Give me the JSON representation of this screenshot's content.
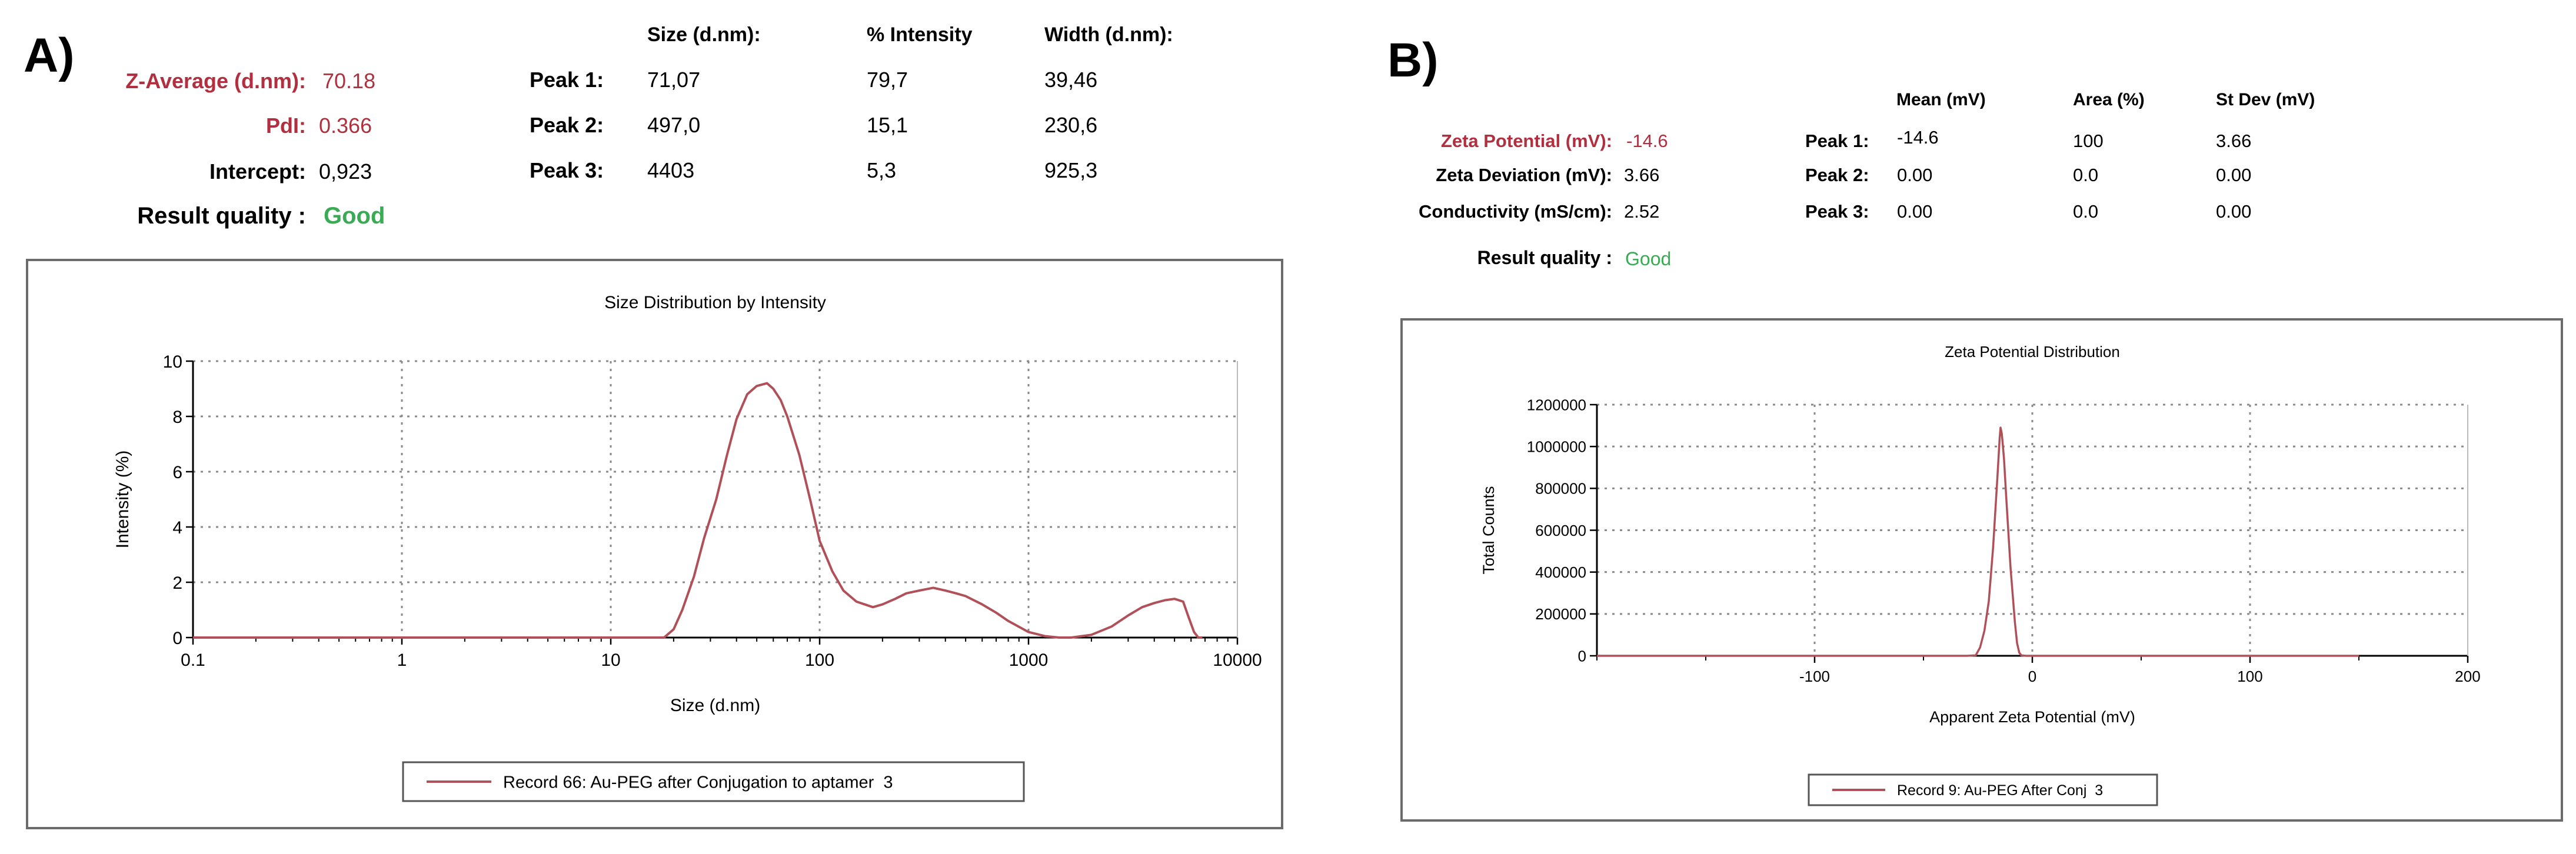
{
  "colors": {
    "curve": "#b05058",
    "label_red": "#b03040",
    "quality_green": "#3aaa55",
    "grid": "#8a8a8a",
    "frame": "#6b6b6b"
  },
  "panel_a": {
    "letter": "A)",
    "summary": {
      "z_average_label": "Z-Average (d.nm):",
      "z_average_value": "70.18",
      "pdi_label": "PdI:",
      "pdi_value": "0.366",
      "intercept_label": "Intercept:",
      "intercept_value": "0,923",
      "quality_label": "Result quality :",
      "quality_value": "Good"
    },
    "peaks_table": {
      "headers": [
        "Size (d.nm):",
        "% Intensity",
        "Width (d.nm):"
      ],
      "rows": [
        {
          "label": "Peak 1:",
          "size": "71,07",
          "intensity": "79,7",
          "width": "39,46"
        },
        {
          "label": "Peak 2:",
          "size": "497,0",
          "intensity": "15,1",
          "width": "230,6"
        },
        {
          "label": "Peak 3:",
          "size": "4403",
          "intensity": "5,3",
          "width": "925,3"
        }
      ]
    }
  },
  "panel_b": {
    "letter": "B)",
    "summary": {
      "zeta_potential_label": "Zeta Potential (mV):",
      "zeta_potential_value": "-14.6",
      "zeta_deviation_label": "Zeta Deviation (mV):",
      "zeta_deviation_value": "3.66",
      "conductivity_label": "Conductivity (mS/cm):",
      "conductivity_value": "2.52",
      "quality_label": "Result quality :",
      "quality_value": "Good"
    },
    "peaks_table": {
      "headers": [
        "Mean (mV)",
        "Area (%)",
        "St Dev (mV)"
      ],
      "rows": [
        {
          "label": "Peak 1:",
          "mean": "-14.6",
          "area": "100",
          "stdev": "3.66"
        },
        {
          "label": "Peak 2:",
          "mean": "0.00",
          "area": "0.0",
          "stdev": "0.00"
        },
        {
          "label": "Peak 3:",
          "mean": "0.00",
          "area": "0.0",
          "stdev": "0.00"
        }
      ]
    }
  },
  "chart_data": [
    {
      "type": "line",
      "title": "Size Distribution by Intensity",
      "xlabel": "Size (d.nm)",
      "ylabel": "Intensity (%)",
      "x_scale": "log",
      "xlim": [
        0.1,
        10000
      ],
      "ylim": [
        0,
        10
      ],
      "x_ticks": [
        "0.1",
        "1",
        "10",
        "100",
        "1000",
        "10000"
      ],
      "y_ticks": [
        "0",
        "2",
        "4",
        "6",
        "8",
        "10"
      ],
      "grid": true,
      "legend_position": "bottom-center",
      "series": [
        {
          "name": "Record 66: Au-PEG after Conjugation to aptamer  3",
          "x": [
            0.1,
            0.13,
            0.16,
            0.2,
            0.25,
            0.32,
            0.4,
            0.5,
            0.63,
            0.79,
            1,
            1.26,
            1.58,
            2,
            2.51,
            3.16,
            3.98,
            5.01,
            6.31,
            7.94,
            10,
            12.6,
            15.8,
            18,
            20,
            22,
            25,
            28,
            32,
            36,
            40,
            45,
            50,
            56,
            60,
            65,
            70,
            80,
            90,
            100,
            115,
            130,
            150,
            180,
            200,
            230,
            260,
            300,
            350,
            400,
            450,
            500,
            600,
            700,
            800,
            1000,
            1200,
            1400,
            1600,
            2000,
            2500,
            3000,
            3500,
            4000,
            4500,
            5000,
            5500,
            5800,
            6200,
            6500,
            6800
          ],
          "y": [
            0,
            0,
            0,
            0,
            0,
            0,
            0,
            0,
            0,
            0,
            0,
            0,
            0,
            0,
            0,
            0,
            0,
            0,
            0,
            0,
            0,
            0,
            0,
            0,
            0.3,
            1.0,
            2.2,
            3.6,
            5.0,
            6.6,
            7.9,
            8.8,
            9.1,
            9.2,
            9.0,
            8.6,
            8.0,
            6.6,
            5.0,
            3.5,
            2.4,
            1.7,
            1.3,
            1.1,
            1.2,
            1.4,
            1.6,
            1.7,
            1.8,
            1.7,
            1.6,
            1.5,
            1.2,
            0.9,
            0.6,
            0.2,
            0.05,
            0,
            0,
            0.1,
            0.4,
            0.8,
            1.1,
            1.25,
            1.35,
            1.4,
            1.3,
            0.8,
            0.2,
            0,
            0
          ]
        }
      ]
    },
    {
      "type": "line",
      "title": "Zeta Potential Distribution",
      "xlabel": "Apparent Zeta Potential (mV)",
      "ylabel": "Total Counts",
      "xlim": [
        -200,
        200
      ],
      "ylim": [
        0,
        1200000
      ],
      "x_ticks": [
        "-100",
        "0",
        "100",
        "200"
      ],
      "y_ticks": [
        "0",
        "200000",
        "400000",
        "600000",
        "800000",
        "1000000",
        "1200000"
      ],
      "grid": true,
      "legend_position": "bottom-center",
      "series": [
        {
          "name": "Record 9: Au-PEG After Conj  3",
          "x": [
            -200,
            -150,
            -100,
            -50,
            -30,
            -26,
            -24,
            -22,
            -20,
            -18,
            -16,
            -15,
            -14.6,
            -14,
            -13,
            -12,
            -10,
            -8,
            -7,
            -6,
            -5,
            -3,
            0,
            50,
            100,
            150
          ],
          "y": [
            0,
            0,
            0,
            0,
            0,
            2000,
            40000,
            120000,
            260000,
            520000,
            860000,
            1040000,
            1090000,
            1060000,
            940000,
            760000,
            420000,
            160000,
            60000,
            15000,
            2000,
            0,
            0,
            0,
            0,
            0
          ]
        }
      ]
    }
  ]
}
